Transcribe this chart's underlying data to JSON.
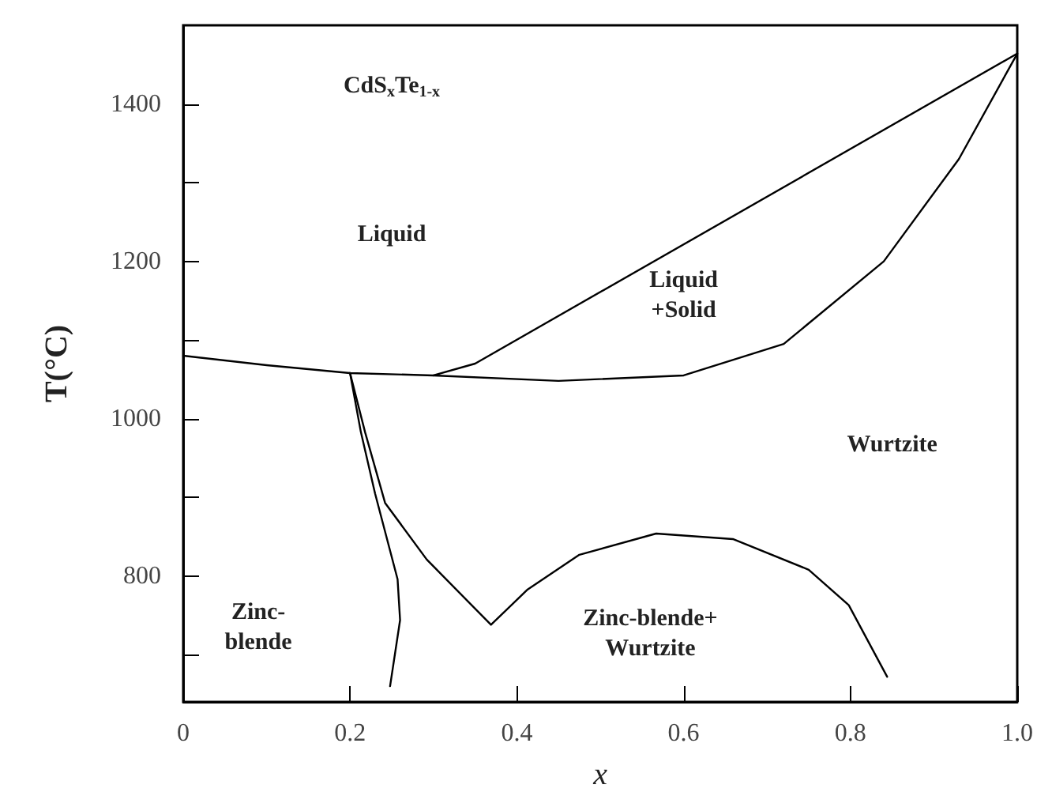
{
  "chart_data": {
    "type": "line",
    "xlabel": "x",
    "ylabel": "T(°C)",
    "xlim": [
      0,
      1
    ],
    "ylim": [
      640,
      1500
    ],
    "xticks": [
      0,
      0.2,
      0.4,
      0.6,
      0.8,
      {
        "value": 1,
        "label": "1.0"
      }
    ],
    "yticks": [
      {
        "value": 700,
        "label": null
      },
      800,
      {
        "value": 900,
        "label": null
      },
      1000,
      {
        "value": 1100,
        "label": null
      },
      1200,
      {
        "value": 1300,
        "label": null
      },
      1400
    ],
    "grid": false,
    "marker": "none",
    "line_style": "solid",
    "series": [
      {
        "color": "#000000",
        "x": [
          0,
          0.1,
          0.2,
          0.3,
          0.45,
          0.6,
          0.72,
          0.84,
          0.93,
          1.0
        ],
        "values": [
          1080,
          1068,
          1058,
          1055,
          1048,
          1055,
          1095,
          1200,
          1330,
          1464
        ]
      },
      {
        "color": "#000000",
        "x": [
          0.3,
          0.35,
          1.0
        ],
        "values": [
          1055,
          1070,
          1464
        ]
      },
      {
        "color": "#000000",
        "x": [
          0.2,
          0.213,
          0.23,
          0.257,
          0.26,
          0.248
        ],
        "values": [
          1058,
          983,
          905,
          796,
          744,
          660
        ]
      },
      {
        "color": "#000000",
        "x": [
          0.2,
          0.218,
          0.242,
          0.292,
          0.369,
          0.413,
          0.475,
          0.567,
          0.659,
          0.75,
          0.798,
          0.844
        ],
        "values": [
          1058,
          983,
          893,
          821,
          738,
          783,
          827,
          854,
          847,
          808,
          763,
          672
        ]
      }
    ],
    "annotations": [
      "CdS$_{x}$Te$_{1-x}$",
      "Liquid",
      "Liquid\n+Solid",
      "Wurtzite",
      "Zinc-\nblende",
      "Zinc-blende+\nWurtzite"
    ]
  }
}
